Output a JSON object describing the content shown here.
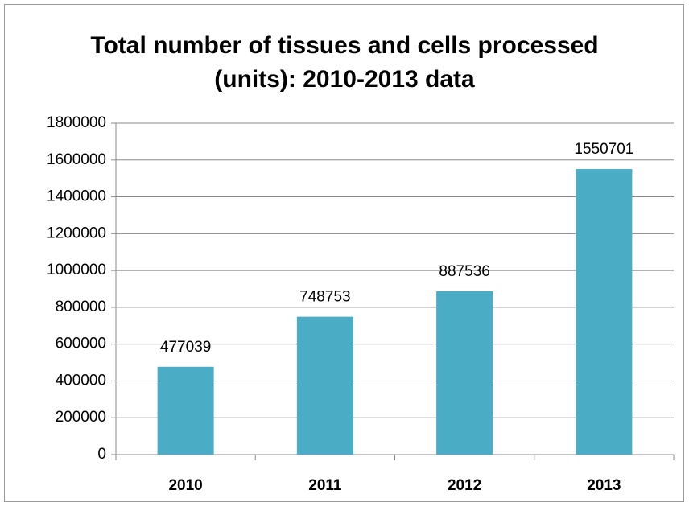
{
  "chart_data": {
    "type": "bar",
    "title": "Total number of tissues and cells processed (units): 2010-2013 data",
    "categories": [
      "2010",
      "2011",
      "2012",
      "2013"
    ],
    "values": [
      477039,
      748753,
      887536,
      1550701
    ],
    "color": "#4bacc6",
    "ylim": [
      0,
      1800000
    ],
    "yticks": [
      0,
      200000,
      400000,
      600000,
      800000,
      1000000,
      1200000,
      1400000,
      1600000,
      1800000
    ],
    "grid": true
  }
}
